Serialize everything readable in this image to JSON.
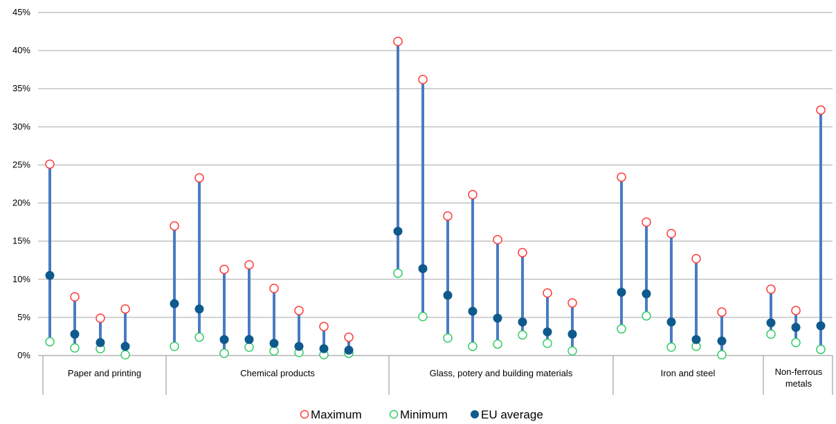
{
  "chart_data": {
    "type": "range",
    "y_axis": {
      "min": 0,
      "max": 45,
      "step": 5,
      "unit": "%"
    },
    "grid": true,
    "groups": [
      {
        "label": [
          "Paper and printing"
        ],
        "count": 4
      },
      {
        "label": [
          "Chemical products"
        ],
        "count": 8
      },
      {
        "label": [
          "Glass, potery and building materials"
        ],
        "count": 8
      },
      {
        "label": [
          "Iron and steel"
        ],
        "count": 5
      },
      {
        "label": [
          "Non-ferrous",
          "metals"
        ],
        "count": 3
      }
    ],
    "series": [
      {
        "name": "Maximum",
        "marker": "open-circle",
        "color": "#ff3b3b",
        "values": [
          25.1,
          7.7,
          4.9,
          6.1,
          17.0,
          23.3,
          11.3,
          11.9,
          8.8,
          5.9,
          3.8,
          2.4,
          41.2,
          36.2,
          18.3,
          21.1,
          15.2,
          13.5,
          8.2,
          6.9,
          23.4,
          17.5,
          16.0,
          12.7,
          5.7,
          8.7,
          5.9,
          32.2
        ]
      },
      {
        "name": "Minimum",
        "marker": "open-circle",
        "color": "#33cc66",
        "values": [
          1.8,
          1.0,
          0.9,
          0.1,
          1.2,
          2.4,
          0.3,
          1.1,
          0.6,
          0.4,
          0.1,
          0.3,
          10.8,
          5.1,
          2.3,
          1.2,
          1.5,
          2.7,
          1.6,
          0.6,
          3.5,
          5.2,
          1.1,
          1.2,
          0.1,
          2.8,
          1.7,
          0.8
        ]
      },
      {
        "name": "EU average",
        "marker": "filled-circle",
        "color": "#0f5a8c",
        "values": [
          10.5,
          2.8,
          1.7,
          1.2,
          6.8,
          6.1,
          2.1,
          2.1,
          1.6,
          1.2,
          0.9,
          0.7,
          16.3,
          11.4,
          7.9,
          5.8,
          4.9,
          4.4,
          3.1,
          2.8,
          8.3,
          8.1,
          4.4,
          2.1,
          1.9,
          4.3,
          3.7,
          3.9
        ]
      }
    ],
    "range_bar_color": "#4a7bc4",
    "legend": {
      "position": "bottom",
      "items": [
        "Maximum",
        "Minimum",
        "EU average"
      ]
    }
  }
}
